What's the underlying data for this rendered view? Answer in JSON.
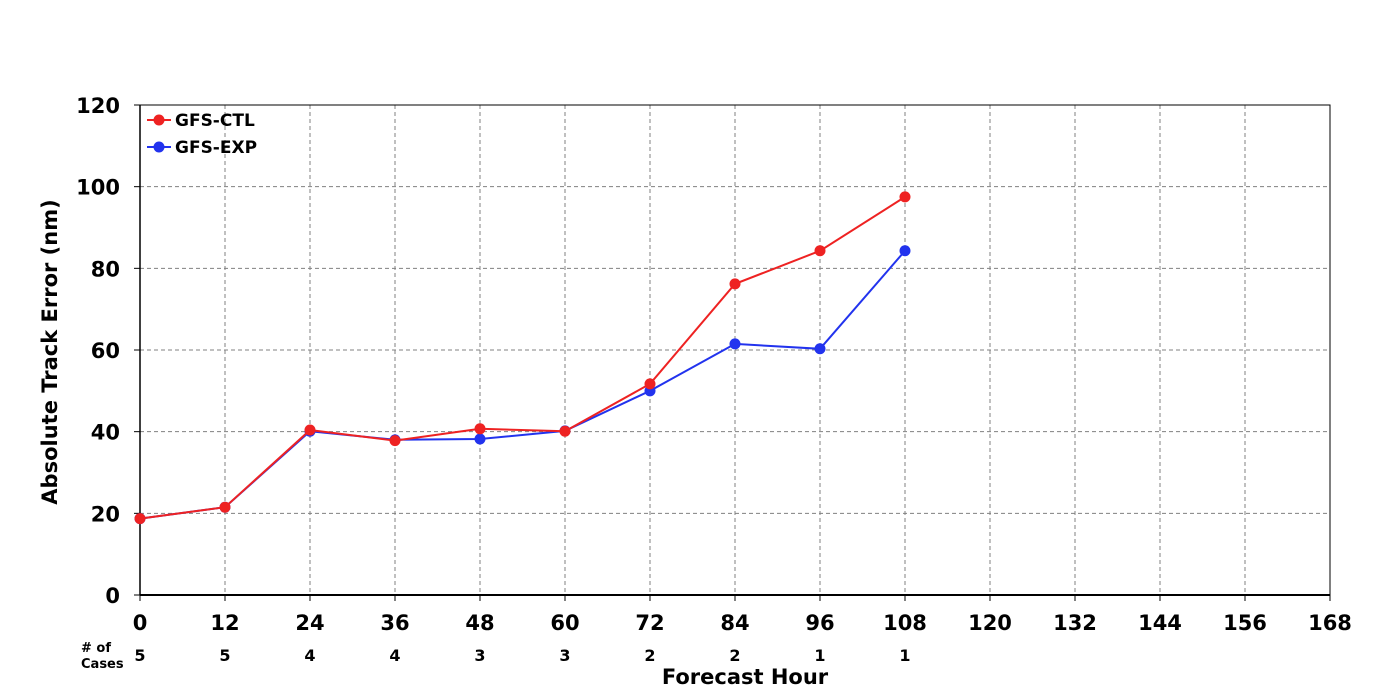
{
  "chart_data": {
    "type": "line",
    "title": "",
    "xlabel": "Forecast Hour",
    "ylabel": "Absolute Track Error (nm)",
    "xlim": [
      0,
      168
    ],
    "ylim": [
      0,
      120
    ],
    "x_ticks": [
      0,
      12,
      24,
      36,
      48,
      60,
      72,
      84,
      96,
      108,
      120,
      132,
      144,
      156,
      168
    ],
    "y_ticks": [
      0,
      20,
      40,
      60,
      80,
      100,
      120
    ],
    "grid": true,
    "legend_position": "top-left",
    "series": [
      {
        "name": "GFS-CTL",
        "color": "#ee2222",
        "x": [
          0,
          12,
          24,
          36,
          48,
          60,
          72,
          84,
          96,
          108
        ],
        "values": [
          18.7,
          21.5,
          40.4,
          37.8,
          40.7,
          40.1,
          51.7,
          76.2,
          84.3,
          97.5
        ]
      },
      {
        "name": "GFS-EXP",
        "color": "#2233ee",
        "x": [
          0,
          12,
          24,
          36,
          48,
          60,
          72,
          84,
          96,
          108
        ],
        "values": [
          18.7,
          21.5,
          40.1,
          38.0,
          38.2,
          40.2,
          50.0,
          61.5,
          60.3,
          84.3
        ]
      }
    ],
    "cases": {
      "title_line1": "# of",
      "title_line2": "Cases",
      "x": [
        0,
        12,
        24,
        36,
        48,
        60,
        72,
        84,
        96,
        108
      ],
      "counts": [
        5,
        5,
        4,
        4,
        3,
        3,
        2,
        2,
        1,
        1
      ]
    }
  }
}
